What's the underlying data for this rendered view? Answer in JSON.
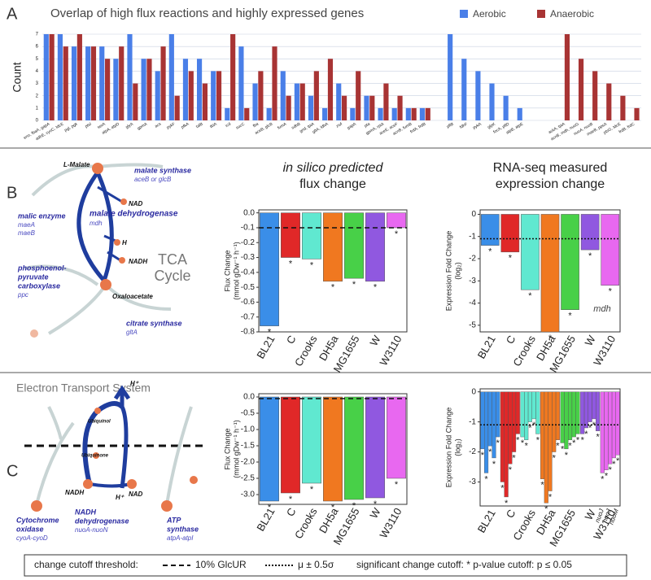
{
  "panel_labels": [
    "A",
    "B",
    "C"
  ],
  "chart_data": [
    {
      "type": "grouped-bar",
      "title": "Overlap of high flux reactions and highly expressed genes",
      "ylabel": "Count",
      "categories": [
        "eno, fbaA, gapA",
        "adhE, cyoC, tdcE",
        "pgl, pgk",
        "ptsI",
        "serA",
        "atpA, atpD",
        "glyA",
        "gpmA",
        "acs",
        "pykF",
        "pfkA",
        "talB",
        "tktA",
        "icd",
        "sucC",
        "fba",
        "aceB, glcB",
        "fumA",
        "sdhB",
        "gnd, tpiA",
        "gltA, ldhA",
        "zwf",
        "gapA",
        "pta",
        "gpmA, rpiA",
        "aceE, aceF",
        "acnB, fumB",
        "frdA, frdB",
        null,
        "pflB",
        "fdhF",
        "pykA",
        "glpK",
        "focA, pflD",
        "atpB, atpE",
        null,
        null,
        "ackA, tpiA",
        "acnB, mdh, nuoG",
        "nuoA, nuoB",
        "maeB, ppsA",
        "ptsG, tdcE",
        "frdB, frdC"
      ],
      "series": [
        {
          "name": "Aerobic",
          "color": "#4a7fe8",
          "values": [
            7,
            7,
            6,
            6,
            6,
            5,
            7,
            5,
            4,
            7,
            5,
            5,
            4,
            1,
            6,
            3,
            1,
            4,
            3,
            2,
            1,
            3,
            1,
            2,
            1,
            1,
            1,
            1,
            null,
            7,
            5,
            4,
            3,
            2,
            1,
            null,
            null,
            null,
            null,
            null,
            null,
            null,
            null
          ]
        },
        {
          "name": "Anaerobic",
          "color": "#a83434",
          "values": [
            7,
            6,
            7,
            6,
            5,
            6,
            3,
            5,
            6,
            2,
            4,
            3,
            4,
            7,
            1,
            4,
            6,
            2,
            3,
            4,
            5,
            2,
            4,
            2,
            3,
            2,
            1,
            1,
            null,
            null,
            null,
            null,
            null,
            null,
            null,
            null,
            null,
            7,
            5,
            4,
            3,
            2,
            1
          ]
        }
      ],
      "ylim": [
        0,
        7
      ],
      "yticks": [
        0,
        1,
        2,
        3,
        4,
        5,
        6,
        7
      ],
      "grid": true
    },
    {
      "type": "bar",
      "title_lines": [
        "in silico predicted",
        "flux change"
      ],
      "ylabel_lines": [
        "Flux Change",
        "(mmol gDw⁻¹ h⁻¹)"
      ],
      "categories": [
        "BL21",
        "C",
        "Crooks",
        "DH5a",
        "MG1655",
        "W",
        "W3110"
      ],
      "values": [
        -0.76,
        -0.3,
        -0.31,
        -0.46,
        -0.44,
        -0.46,
        -0.1
      ],
      "marks": [
        "*",
        "*",
        "*",
        "*",
        "*",
        "*",
        "*"
      ],
      "colors": [
        "#3a8ee8",
        "#e02828",
        "#60e8d0",
        "#f07820",
        "#48d048",
        "#9058e0",
        "#e868f0"
      ],
      "ylim": [
        -0.8,
        0.02
      ],
      "yticks": [
        {
          "value": 0,
          "label": "0.0"
        },
        -0.1,
        -0.2,
        -0.3,
        -0.4,
        -0.5,
        -0.6,
        -0.7,
        -0.8
      ],
      "threshold": -0.1,
      "threshold_style": "dashed"
    },
    {
      "type": "bar",
      "title_lines": [
        "RNA-seq measured",
        "expression change"
      ],
      "ylabel_lines": [
        "Expression Fold Change",
        "(log₂)"
      ],
      "categories": [
        "BL21",
        "C",
        "Crooks",
        "DH5a",
        "MG1655",
        "W",
        "W3110"
      ],
      "values": [
        -1.4,
        -1.7,
        -3.4,
        -5.3,
        -4.3,
        -1.6,
        -3.2
      ],
      "marks": [
        "*",
        "*",
        "*",
        "*",
        "*",
        "*",
        "*"
      ],
      "colors": [
        "#3a8ee8",
        "#e02828",
        "#60e8d0",
        "#f07820",
        "#48d048",
        "#9058e0",
        "#e868f0"
      ],
      "ylim": [
        -5.3,
        0.2
      ],
      "yticks": [
        0,
        -1,
        -2,
        -3,
        -4,
        -5
      ],
      "threshold": -1.1,
      "threshold_style": "dotted",
      "annotation": "mdh"
    },
    {
      "type": "bar",
      "ylabel_lines": [
        "Flux Change",
        "(mmol gDw⁻¹ h⁻¹)"
      ],
      "categories": [
        "BL21",
        "C",
        "Crooks",
        "DH5a",
        "MG1655",
        "W",
        "W3110"
      ],
      "values": [
        -3.2,
        -2.95,
        -2.65,
        -3.2,
        -3.15,
        -3.1,
        -2.5
      ],
      "marks": [
        "*",
        "*",
        "*",
        "*",
        "*",
        "*",
        "*"
      ],
      "colors": [
        "#3a8ee8",
        "#e02828",
        "#60e8d0",
        "#f07820",
        "#48d048",
        "#9058e0",
        "#e868f0"
      ],
      "ylim": [
        -3.3,
        0.1
      ],
      "yticks": [
        {
          "value": 0,
          "label": "0.0"
        },
        -0.5,
        {
          "value": -1,
          "label": "-1.0"
        },
        -1.5,
        {
          "value": -2,
          "label": "-2.0"
        },
        -2.5,
        {
          "value": -3,
          "label": "-3.0"
        }
      ],
      "threshold": -0.05,
      "threshold_style": "dashed"
    },
    {
      "type": "cluster-bar",
      "ylabel_lines": [
        "Expression Fold Change",
        "(log₂)"
      ],
      "categories": [
        "BL21",
        "C",
        "Crooks",
        "DH5a",
        "MG1655",
        "W",
        "W3110"
      ],
      "values": [
        [
          -1.9,
          -2.7,
          -1.8,
          -2.2,
          -1.5
        ],
        [
          -3.0,
          -3.5,
          -2.4,
          -2.0,
          -1.4
        ],
        [
          -1.5,
          -1.6,
          -1.0,
          -0.9,
          -1.4
        ],
        [
          -2.9,
          -3.7,
          -3.3,
          -2.0,
          -1.6
        ],
        [
          -1.7,
          -1.9,
          -1.6,
          -1.5,
          -1.4
        ],
        [
          -1.4,
          -1.2,
          -1.0,
          -0.9,
          -1.3
        ],
        [
          -2.7,
          -2.6,
          -2.4,
          -2.2,
          -2.1
        ]
      ],
      "marks": [
        [
          "*",
          "*",
          "*",
          "*",
          "*"
        ],
        [
          "*",
          "*",
          "*",
          "*",
          "*"
        ],
        [
          "*",
          "*",
          "*",
          "*",
          "*"
        ],
        [
          "*",
          "*",
          "*",
          "*",
          "*"
        ],
        [
          "*",
          "*",
          "*",
          "*",
          "*"
        ],
        [
          "*",
          "*",
          "*",
          "*",
          "*"
        ],
        [
          "*",
          "*",
          "*",
          "*",
          "*"
        ]
      ],
      "colors": [
        "#3a8ee8",
        "#e02828",
        "#60e8d0",
        "#f07820",
        "#48d048",
        "#9058e0",
        "#e868f0"
      ],
      "ylim": [
        -3.8,
        0.1
      ],
      "yticks": [
        0,
        -1,
        -2,
        -3
      ],
      "threshold": -1.1,
      "threshold_style": "dotted",
      "gene_labels": [
        "nuoJ",
        "nuoJ",
        "nuoM"
      ]
    }
  ],
  "diagram_b": [
    "L-Malate",
    "NAD",
    "malate synthase",
    "aceB or glcB",
    "malic enzyme",
    "maeA",
    "maeB",
    "malate dehydrogenase",
    "mdh",
    "H",
    "NADH",
    "TCA",
    "Cycle",
    "phosphoenol-",
    "pyruvate",
    "carboxylase",
    "ppc",
    "Oxaloacetate",
    "citrate synthase",
    "gltA"
  ],
  "diagram_c": [
    "Electron Transport System",
    "H⁺",
    "Ubiquinol",
    "Ubiquinone",
    "NADH",
    "NAD",
    "H⁺",
    "Cytochrome",
    "oxidase",
    "cyoA-cyoD",
    "NADH",
    "dehydrogenase",
    "nuoA-nuoN",
    "ATP",
    "synthase",
    "atpA-atpI"
  ],
  "legend_box": {
    "title": "change cutoff threshold:",
    "dashed": "10% GlcUR",
    "dotted": "μ ± 0.5σ",
    "significance": "significant change cutoff: * p-value cutoff:  p ≤ 0.05"
  }
}
